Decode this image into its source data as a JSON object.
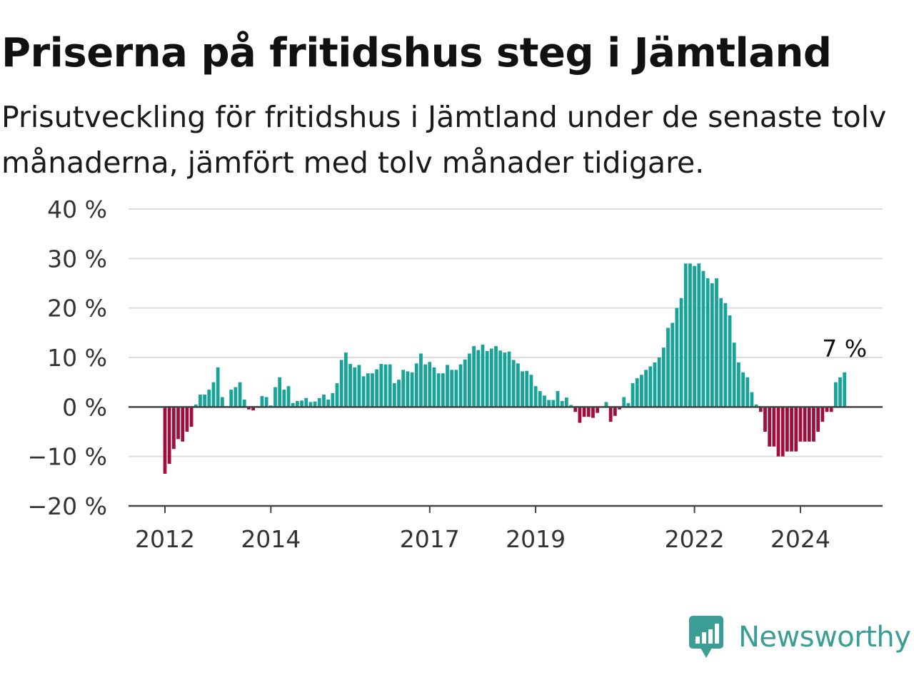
{
  "title": "Priserna på fritidshus steg i Jämtland",
  "subtitle": "Prisutveckling för fritidshus i Jämtland under de senaste tolv månaderna, jämfört med tolv månader tidigare.",
  "brand": {
    "name": "Newsworthy",
    "icon": "newsworthy-logo-icon",
    "color": "#3a9e94"
  },
  "colors": {
    "positive": "#17a398",
    "negative": "#a00f3c",
    "grid": "#dddddd",
    "zero_line": "#444444"
  },
  "chart_data": {
    "type": "bar",
    "x_start": "2012-01",
    "frequency": "monthly",
    "ylim": [
      -20,
      40
    ],
    "yticks": [
      40,
      30,
      20,
      10,
      0,
      -10,
      -20
    ],
    "ytick_labels": [
      "40 %",
      "30 %",
      "20 %",
      "10 %",
      "0 %",
      "−10 %",
      "−20 %"
    ],
    "xticks": [
      "2012",
      "2014",
      "2017",
      "2019",
      "2022",
      "2024"
    ],
    "grid": true,
    "annotation": {
      "text": "7 %",
      "at": "last"
    },
    "values": [
      -13.5,
      -11.5,
      -8.5,
      -6.5,
      -7,
      -5,
      -4,
      0.5,
      2.5,
      2.5,
      3.5,
      5,
      8,
      2,
      0,
      3.5,
      4,
      5,
      1.5,
      -0.5,
      -0.7,
      0.2,
      2.2,
      2,
      0.3,
      4,
      6,
      3.5,
      4.2,
      0.8,
      1.2,
      1.3,
      1.8,
      1,
      1.1,
      1.8,
      2.5,
      1.5,
      2.8,
      4.8,
      9.5,
      11,
      8.7,
      8,
      8.5,
      6.2,
      6.8,
      6.8,
      7.6,
      8.7,
      8.6,
      8.6,
      4.8,
      5.5,
      7.5,
      7.2,
      7,
      8.8,
      10.8,
      8.6,
      9.1,
      8,
      6.8,
      6.8,
      8.5,
      7.5,
      7.5,
      8.6,
      9.6,
      10.8,
      12.3,
      11.5,
      12.6,
      11.3,
      11.8,
      12.3,
      11.4,
      11,
      11.2,
      9.5,
      8.8,
      7.2,
      7.3,
      6.5,
      4.2,
      3.2,
      2.3,
      1.4,
      1.4,
      3.2,
      1.2,
      1.9,
      0.4,
      -1,
      -3.2,
      -2,
      -2,
      -2.2,
      -1.2,
      0,
      1,
      -3,
      -1.8,
      -0.5,
      2,
      0.8,
      4.8,
      5.8,
      6.5,
      7.5,
      8.2,
      9,
      10,
      12,
      16,
      17,
      20,
      22,
      29,
      29,
      28.5,
      29,
      27.5,
      26,
      25,
      26,
      22,
      21,
      18.5,
      13,
      9,
      7,
      6,
      3,
      0.5,
      -1,
      -5,
      -8,
      -8,
      -10,
      -10,
      -9,
      -9,
      -9,
      -7,
      -7,
      -7,
      -7,
      -5,
      -3,
      -1,
      -1,
      5,
      6,
      7
    ]
  }
}
